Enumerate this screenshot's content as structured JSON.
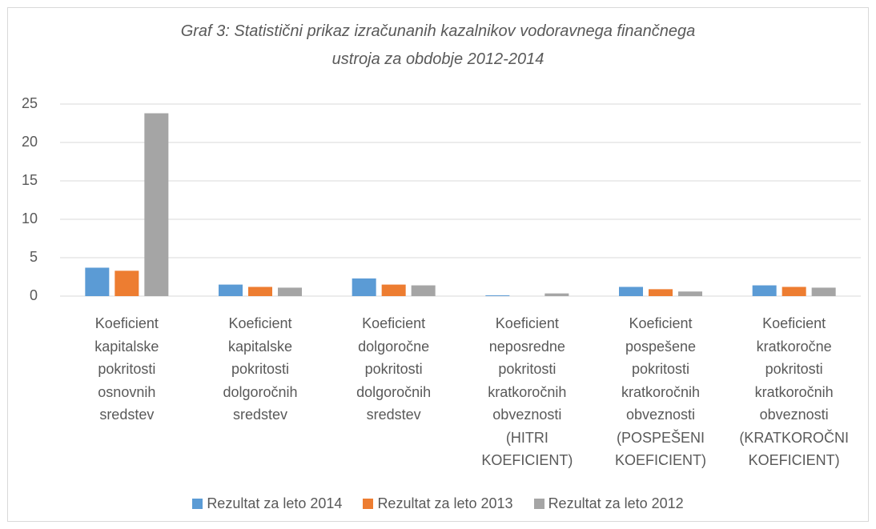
{
  "chart_data": {
    "type": "bar",
    "title": "Graf 3: Statistični prikaz izračunanih kazalnikov vodoravnega finančnega ustroja za obdobje 2012-2014",
    "categories": [
      "Koeficient kapitalske pokritosti osnovnih sredstev",
      "Koeficient kapitalske pokritosti dolgoročnih sredstev",
      "Koeficient dolgoročne pokritosti dolgoročnih sredstev",
      "Koeficient neposredne pokritosti kratkoročnih obveznosti (HITRI KOEFICIENT)",
      "Koeficient pospešene pokritosti kratkoročnih obveznosti (POSPEŠENI KOEFICIENT)",
      "Koeficient kratkoročne pokritosti kratkoročnih obveznosti (KRATKOROČNI KOEFICIENT)"
    ],
    "series": [
      {
        "name": "Rezultat za leto 2014",
        "color": "#5b9bd5",
        "values": [
          3.7,
          1.5,
          2.3,
          0.1,
          1.2,
          1.4
        ]
      },
      {
        "name": "Rezultat za leto 2013",
        "color": "#ed7d31",
        "values": [
          3.3,
          1.2,
          1.5,
          0.0,
          0.9,
          1.2
        ]
      },
      {
        "name": "Rezultat za leto 2012",
        "color": "#a5a5a5",
        "values": [
          23.8,
          1.1,
          1.4,
          0.35,
          0.6,
          1.1
        ]
      }
    ],
    "ylim": [
      0,
      25
    ],
    "yticks": [
      0,
      5,
      10,
      15,
      20,
      25
    ],
    "grid": true,
    "legend": "bottom"
  }
}
